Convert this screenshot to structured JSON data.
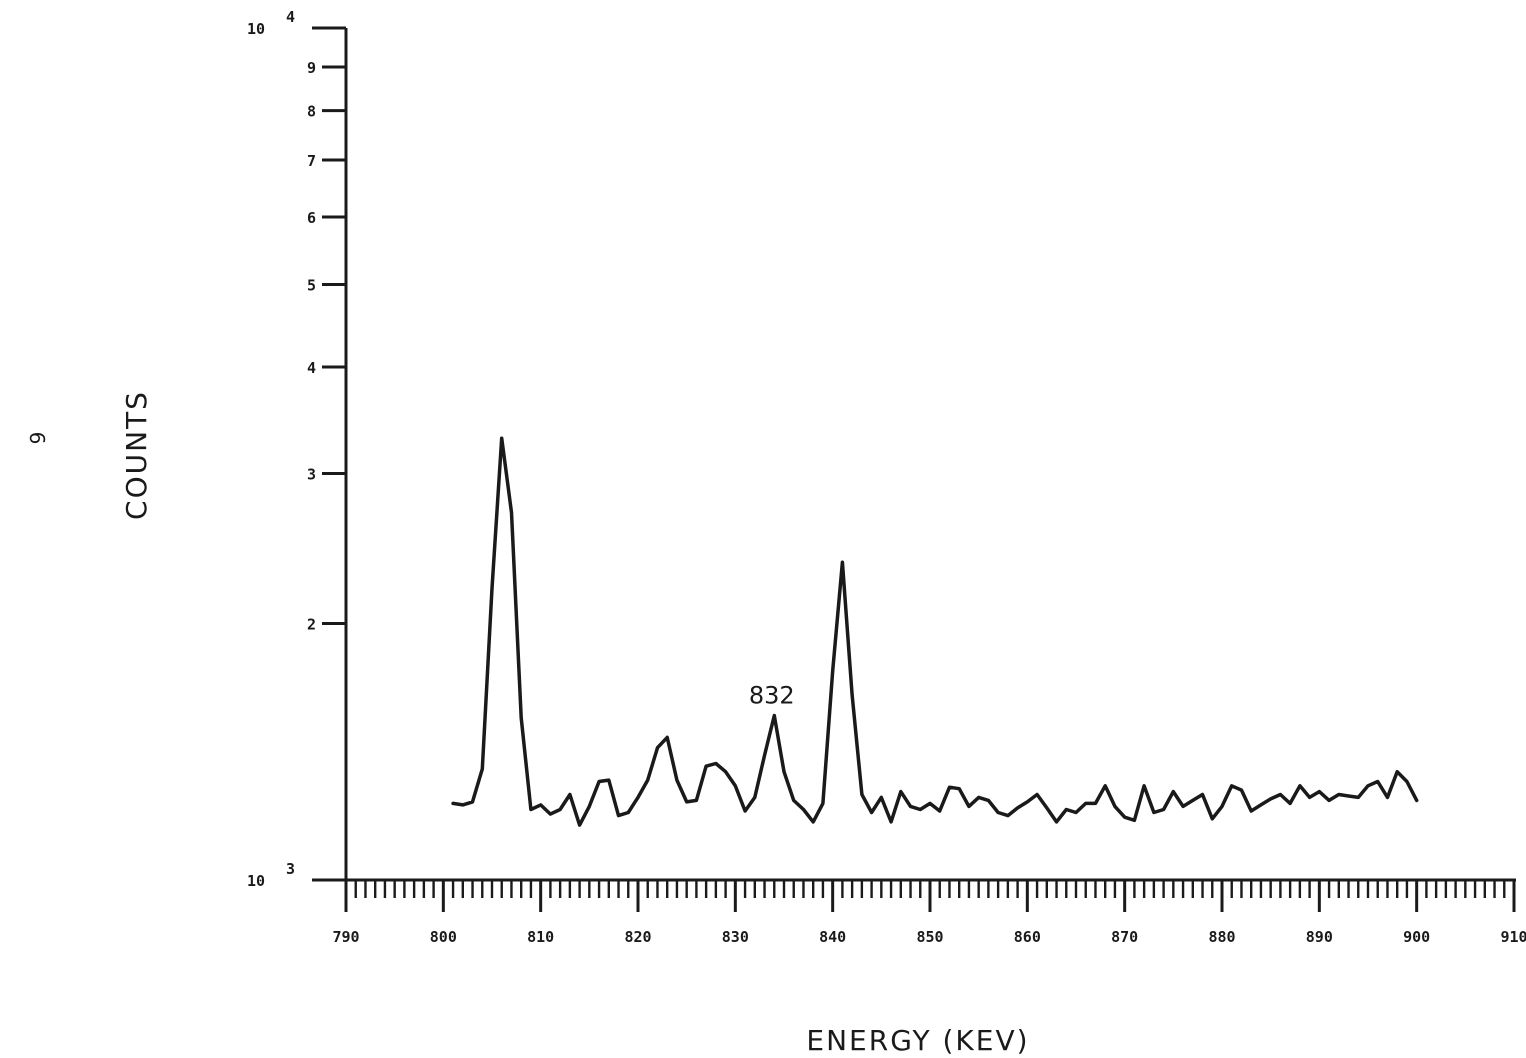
{
  "page": {
    "page_number": "6"
  },
  "chart_data": {
    "type": "line",
    "title": "",
    "xlabel": "ENERGY (KEV)",
    "ylabel": "COUNTS",
    "xlim": [
      790,
      910
    ],
    "ylim": [
      1000,
      10000
    ],
    "yscale": "log",
    "grid": false,
    "x_tick_labels": [
      "790",
      "800",
      "810",
      "820",
      "830",
      "840",
      "850",
      "860",
      "870",
      "880",
      "890",
      "900",
      "910"
    ],
    "x_tick_values": [
      790,
      800,
      810,
      820,
      830,
      840,
      850,
      860,
      870,
      880,
      890,
      900,
      910
    ],
    "y_tick_values": [
      2000,
      3000,
      4000,
      5000,
      6000,
      7000,
      8000,
      9000
    ],
    "y_tick_labels": [
      "2",
      "3",
      "4",
      "5",
      "6",
      "7",
      "8",
      "9"
    ],
    "y_decade_labels": [
      {
        "value": 1000,
        "base": "10",
        "exp": "3"
      },
      {
        "value": 10000,
        "base": "10",
        "exp": "4"
      }
    ],
    "annotations": [
      {
        "text": "832",
        "x": 832.2,
        "y": 1560
      }
    ],
    "series": [
      {
        "color": "#1a1a1a",
        "x": [
          801,
          802,
          803,
          804,
          805,
          806,
          807,
          808,
          809,
          810,
          811,
          812,
          813,
          814,
          815,
          816,
          817,
          818,
          819,
          820,
          821,
          822,
          823,
          824,
          825,
          826,
          827,
          828,
          829,
          830,
          831,
          832,
          833,
          834,
          835,
          836,
          837,
          838,
          839,
          840,
          841,
          842,
          843,
          844,
          845,
          846,
          847,
          848,
          849,
          850,
          851,
          852,
          853,
          854,
          855,
          856,
          857,
          858,
          859,
          860,
          861,
          862,
          863,
          864,
          865,
          866,
          867,
          868,
          869,
          870,
          871,
          872,
          873,
          874,
          875,
          876,
          877,
          878,
          879,
          880,
          881,
          882,
          883,
          884,
          885,
          886,
          887,
          888,
          889,
          890,
          891,
          892,
          893,
          894,
          895,
          896,
          897,
          898,
          899,
          900
        ],
        "y": [
          1230,
          1225,
          1235,
          1350,
          2200,
          3300,
          2700,
          1550,
          1210,
          1225,
          1195,
          1210,
          1260,
          1160,
          1220,
          1305,
          1310,
          1190,
          1200,
          1250,
          1310,
          1430,
          1470,
          1310,
          1235,
          1240,
          1360,
          1370,
          1340,
          1290,
          1205,
          1250,
          1400,
          1560,
          1340,
          1240,
          1210,
          1170,
          1230,
          1760,
          2360,
          1650,
          1260,
          1200,
          1250,
          1170,
          1270,
          1220,
          1210,
          1230,
          1205,
          1285,
          1280,
          1220,
          1250,
          1240,
          1200,
          1190,
          1215,
          1235,
          1260,
          1215,
          1170,
          1210,
          1200,
          1230,
          1230,
          1290,
          1220,
          1185,
          1175,
          1290,
          1200,
          1210,
          1270,
          1220,
          1240,
          1260,
          1180,
          1220,
          1290,
          1275,
          1205,
          1225,
          1245,
          1260,
          1230,
          1290,
          1250,
          1270,
          1240,
          1260,
          1255,
          1250,
          1290,
          1305,
          1250,
          1340,
          1305,
          1240
        ]
      }
    ]
  }
}
